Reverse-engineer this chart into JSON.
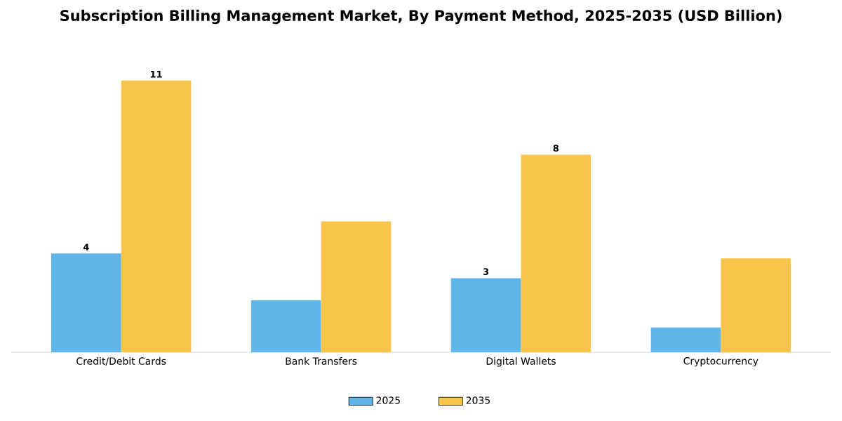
{
  "chart_data": {
    "type": "bar",
    "title": "Subscription Billing Management Market, By Payment Method, 2025-2035 (USD Billion)",
    "categories": [
      "Credit/Debit Cards",
      "Bank Transfers",
      "Digital Wallets",
      "Cryptocurrency"
    ],
    "series": [
      {
        "name": "2025",
        "color": "#5db5e8",
        "values": [
          4,
          2.1,
          3,
          1
        ],
        "value_labels": [
          "4",
          null,
          "3",
          null
        ]
      },
      {
        "name": "2035",
        "color": "#f9c44c",
        "values": [
          11,
          5.3,
          8,
          3.8
        ],
        "value_labels": [
          "11",
          null,
          "8",
          null
        ]
      }
    ],
    "legend": "bottom",
    "grid": false
  }
}
